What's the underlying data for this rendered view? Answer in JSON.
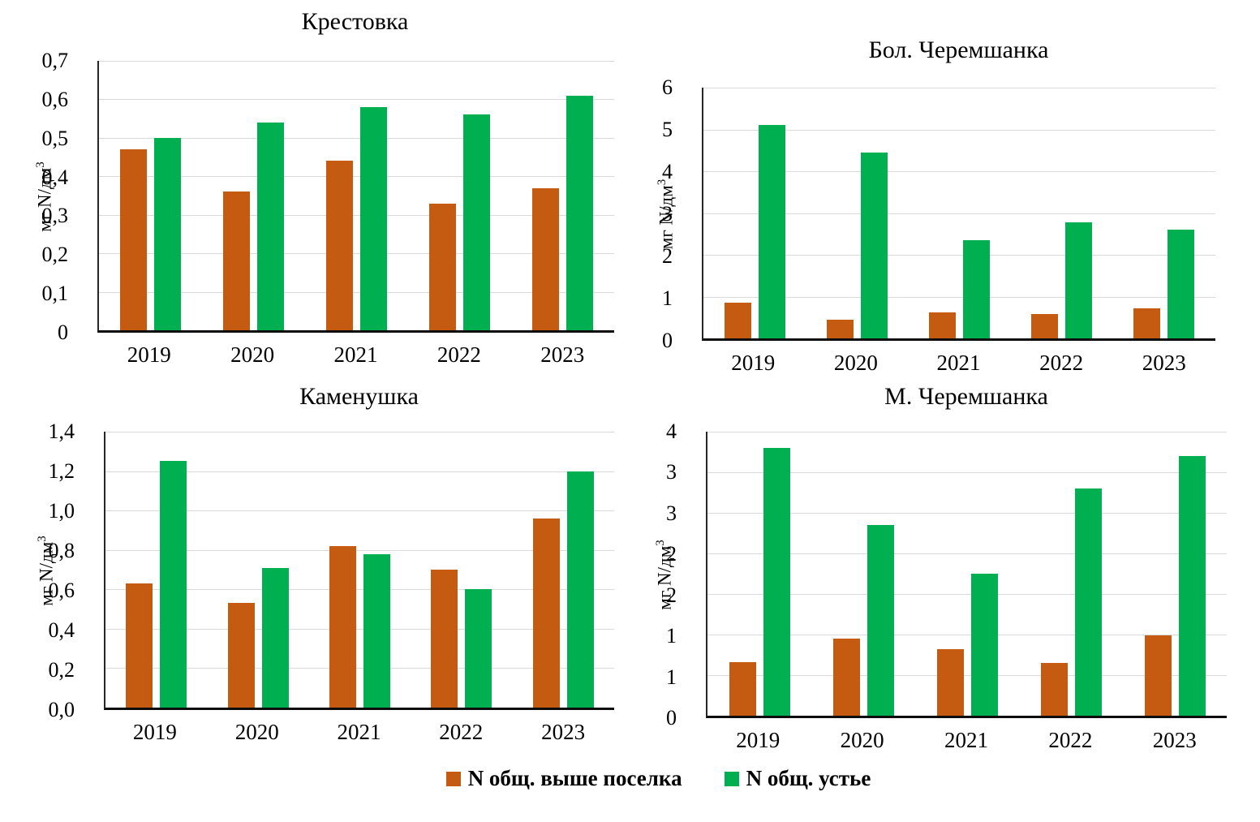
{
  "figure": {
    "y_axis_unit_main": "мг N/дм",
    "y_axis_unit_sup": "3"
  },
  "legend": {
    "items": [
      {
        "label": "N общ. выше поселка",
        "color": "#C55A11"
      },
      {
        "label": "N общ. устье",
        "color": "#00B050"
      }
    ]
  },
  "chart_data": [
    {
      "type": "bar",
      "title": "Крестовка",
      "ylabel": "мг N/дм³",
      "ylabel_main": "мг N/дм",
      "ylabel_sup": "3",
      "categories": [
        "2019",
        "2020",
        "2021",
        "2022",
        "2023"
      ],
      "series": [
        {
          "name": "N общ. выше поселка",
          "color": "#C55A11",
          "values": [
            0.47,
            0.36,
            0.44,
            0.33,
            0.37
          ]
        },
        {
          "name": "N общ. устье",
          "color": "#00B050",
          "values": [
            0.5,
            0.54,
            0.58,
            0.56,
            0.61
          ]
        }
      ],
      "ylim": [
        0,
        0.7
      ],
      "ytick_step": 0.1,
      "ytick_labels_top_to_bottom": [
        "0,7",
        "0,6",
        "0,5",
        "0,4",
        "0,3",
        "0,2",
        "0,1",
        "0"
      ],
      "grid": true,
      "legend_position": "shared-bottom"
    },
    {
      "type": "bar",
      "title": "Бол. Черемшанка",
      "ylabel": "мг N/дм³",
      "ylabel_main": "мг N/дм",
      "ylabel_sup": "3",
      "categories": [
        "2019",
        "2020",
        "2021",
        "2022",
        "2023"
      ],
      "series": [
        {
          "name": "N общ. выше поселка",
          "color": "#C55A11",
          "values": [
            0.85,
            0.45,
            0.62,
            0.58,
            0.72
          ]
        },
        {
          "name": "N общ. устье",
          "color": "#00B050",
          "values": [
            5.1,
            4.45,
            2.35,
            2.78,
            2.6
          ]
        }
      ],
      "ylim": [
        0,
        6
      ],
      "ytick_step": 1,
      "ytick_labels_top_to_bottom": [
        "6",
        "5",
        "4",
        "3",
        "2",
        "1",
        "0"
      ],
      "grid": true,
      "legend_position": "shared-bottom"
    },
    {
      "type": "bar",
      "title": "Каменушка",
      "ylabel": "мг N/дм³",
      "ylabel_main": "мг N/дм",
      "ylabel_sup": "3",
      "categories": [
        "2019",
        "2020",
        "2021",
        "2022",
        "2023"
      ],
      "series": [
        {
          "name": "N общ. выше поселка",
          "color": "#C55A11",
          "values": [
            0.63,
            0.53,
            0.82,
            0.7,
            0.96
          ]
        },
        {
          "name": "N общ. устье",
          "color": "#00B050",
          "values": [
            1.25,
            0.71,
            0.78,
            0.6,
            1.2
          ]
        }
      ],
      "ylim": [
        0,
        1.4
      ],
      "ytick_step": 0.2,
      "ytick_labels_top_to_bottom": [
        "1,4",
        "1,2",
        "1,0",
        "0,8",
        "0,6",
        "0,4",
        "0,2",
        "0,0"
      ],
      "grid": true,
      "legend_position": "shared-bottom"
    },
    {
      "type": "bar",
      "title": "М. Черемшанка",
      "ylabel": "мг N/дм³",
      "ylabel_main": "мг N/дм",
      "ylabel_sup": "3",
      "categories": [
        "2019",
        "2020",
        "2021",
        "2022",
        "2023"
      ],
      "series": [
        {
          "name": "N общ. выше поселка",
          "color": "#C55A11",
          "values": [
            0.66,
            0.95,
            0.82,
            0.65,
            0.99
          ]
        },
        {
          "name": "N общ. устье",
          "color": "#00B050",
          "values": [
            3.3,
            2.35,
            1.75,
            2.8,
            3.2
          ]
        }
      ],
      "ylim": [
        0,
        3.5
      ],
      "ytick_step": 0.5,
      "ytick_labels_top_to_bottom": [
        "4",
        "3",
        "3",
        "2",
        "2",
        "1",
        "1",
        "0"
      ],
      "grid": true,
      "legend_position": "shared-bottom"
    }
  ]
}
